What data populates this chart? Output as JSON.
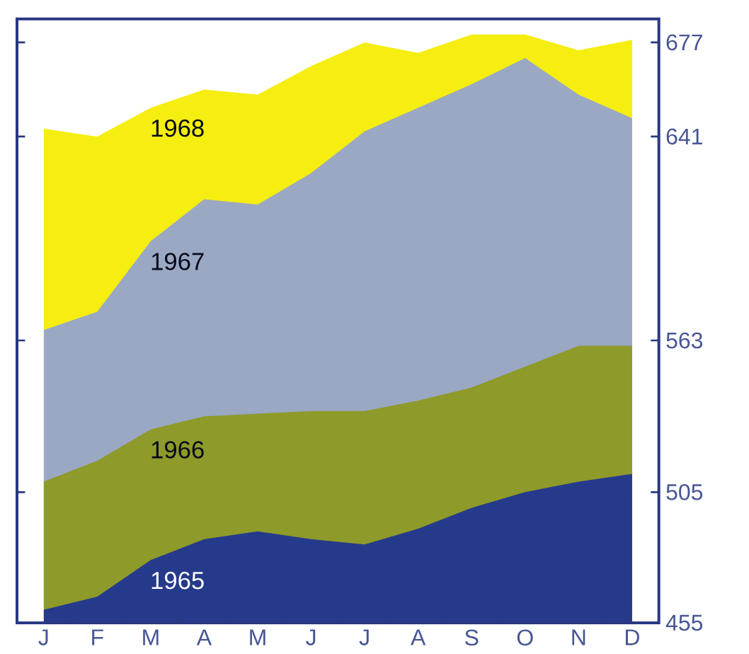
{
  "chart_data": {
    "type": "area",
    "categories": [
      "J",
      "F",
      "M",
      "A",
      "M",
      "J",
      "J",
      "A",
      "S",
      "O",
      "N",
      "D"
    ],
    "series": [
      {
        "name": "1965",
        "color": "#263a8c",
        "values": [
          460,
          465,
          479,
          487,
          490,
          487,
          485,
          491,
          499,
          505,
          509,
          512
        ]
      },
      {
        "name": "1966",
        "color": "#8e9a2a",
        "values": [
          509,
          517,
          529,
          534,
          535,
          536,
          536,
          540,
          545,
          553,
          561,
          561
        ]
      },
      {
        "name": "1967",
        "color": "#9aa8c4",
        "values": [
          567,
          574,
          601,
          617,
          615,
          627,
          643,
          652,
          661,
          671,
          657,
          648
        ]
      },
      {
        "name": "1968",
        "color": "#f5ee10",
        "values": [
          644,
          641,
          652,
          659,
          657,
          668,
          677,
          673,
          680,
          680,
          674,
          678
        ]
      }
    ],
    "ylim": [
      455,
      686
    ],
    "yticks": [
      455,
      505,
      563,
      641,
      677
    ]
  }
}
